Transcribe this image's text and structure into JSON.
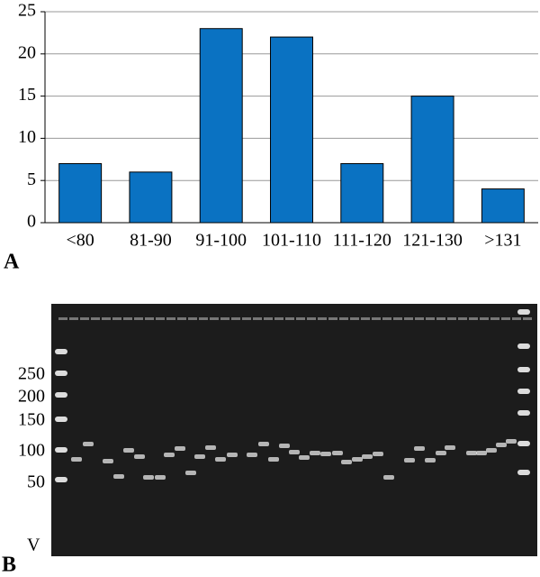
{
  "chart_data": {
    "type": "bar",
    "categories": [
      "<80",
      "81-90",
      "91-100",
      "101-110",
      "111-120",
      "121-130",
      ">131"
    ],
    "values": [
      7,
      6,
      23,
      22,
      7,
      15,
      4
    ],
    "color": "#0a72c2",
    "ylim": [
      0,
      25
    ],
    "yticks": [
      0,
      5,
      10,
      15,
      20,
      25
    ],
    "grid": true
  },
  "panel_labels": [
    "A",
    "B"
  ],
  "gel": {
    "ladder_labels": [
      "250",
      "200",
      "150",
      "100",
      "50"
    ],
    "well_label": "V"
  }
}
